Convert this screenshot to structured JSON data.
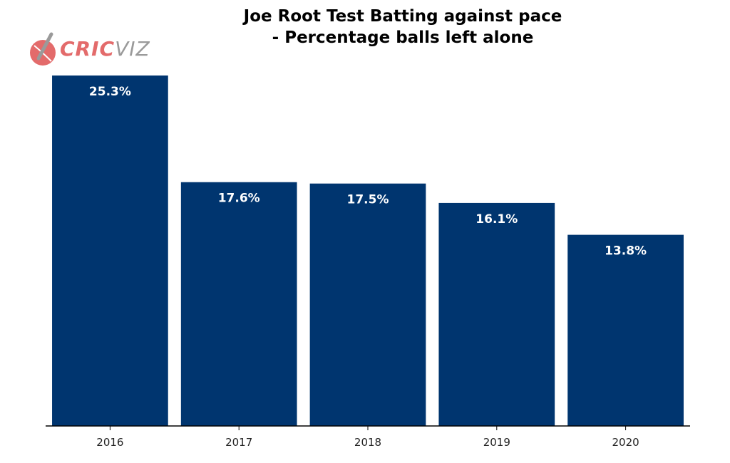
{
  "logo": {
    "text_bold": "CRIC",
    "text_light": "VIZ",
    "colors": {
      "bold": "#e36b6b",
      "light": "#9a9a9a",
      "ball": "#e36b6b"
    }
  },
  "chart_data": {
    "type": "bar",
    "title_lines": [
      "Joe Root Test Batting against pace",
      "- Percentage balls left alone"
    ],
    "categories": [
      "2016",
      "2017",
      "2018",
      "2019",
      "2020"
    ],
    "values": [
      25.3,
      17.6,
      17.5,
      16.1,
      13.8
    ],
    "value_labels": [
      "25.3%",
      "17.6%",
      "17.5%",
      "16.1%",
      "13.8%"
    ],
    "xlabel": "",
    "ylabel": "",
    "ylim": [
      0,
      25.3
    ],
    "grid": false,
    "colors": {
      "bar": "#00356f",
      "axis": "#000000"
    }
  }
}
